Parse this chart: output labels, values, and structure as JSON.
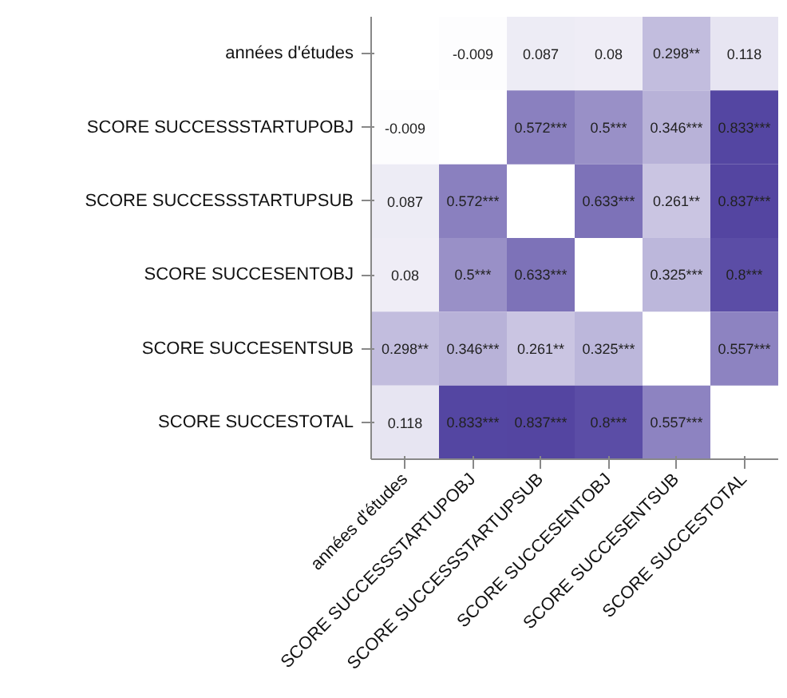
{
  "chart_data": {
    "type": "heatmap",
    "categories": [
      "années d'études",
      "SCORE SUCCESSSTARTUPOBJ",
      "SCORE SUCCESSSTARTUPSUB",
      "SCORE SUCCESENTOBJ",
      "SCORE SUCCESENTSUB",
      "SCORE SUCCESTOTAL"
    ],
    "y_categories": [
      "années d'études",
      "SCORE SUCCESSSTARTUPOBJ",
      "SCORE SUCCESSSTARTUPSUB",
      "SCORE SUCCESENTOBJ",
      "SCORE SUCCESENTSUB",
      "SCORE SUCCESTOTAL"
    ],
    "cells": [
      [
        null,
        -0.009,
        0.087,
        0.08,
        0.298,
        0.118
      ],
      [
        -0.009,
        null,
        0.572,
        0.5,
        0.346,
        0.833
      ],
      [
        0.087,
        0.572,
        null,
        0.633,
        0.261,
        0.837
      ],
      [
        0.08,
        0.5,
        0.633,
        null,
        0.325,
        0.8
      ],
      [
        0.298,
        0.346,
        0.261,
        0.325,
        null,
        0.557
      ],
      [
        0.118,
        0.833,
        0.837,
        0.8,
        0.557,
        null
      ]
    ],
    "cell_labels": [
      [
        null,
        "-0.009",
        "0.087",
        "0.08",
        "0.298**",
        "0.118"
      ],
      [
        "-0.009",
        null,
        "0.572***",
        "0.5***",
        "0.346***",
        "0.833***"
      ],
      [
        "0.087",
        "0.572***",
        null,
        "0.633***",
        "0.261**",
        "0.837***"
      ],
      [
        "0.08",
        "0.5***",
        "0.633***",
        null,
        "0.325***",
        "0.8***"
      ],
      [
        "0.298**",
        "0.346***",
        "0.261**",
        "0.325***",
        null,
        "0.557***"
      ],
      [
        "0.118",
        "0.833***",
        "0.837***",
        "0.8***",
        "0.557***",
        null
      ]
    ]
  }
}
